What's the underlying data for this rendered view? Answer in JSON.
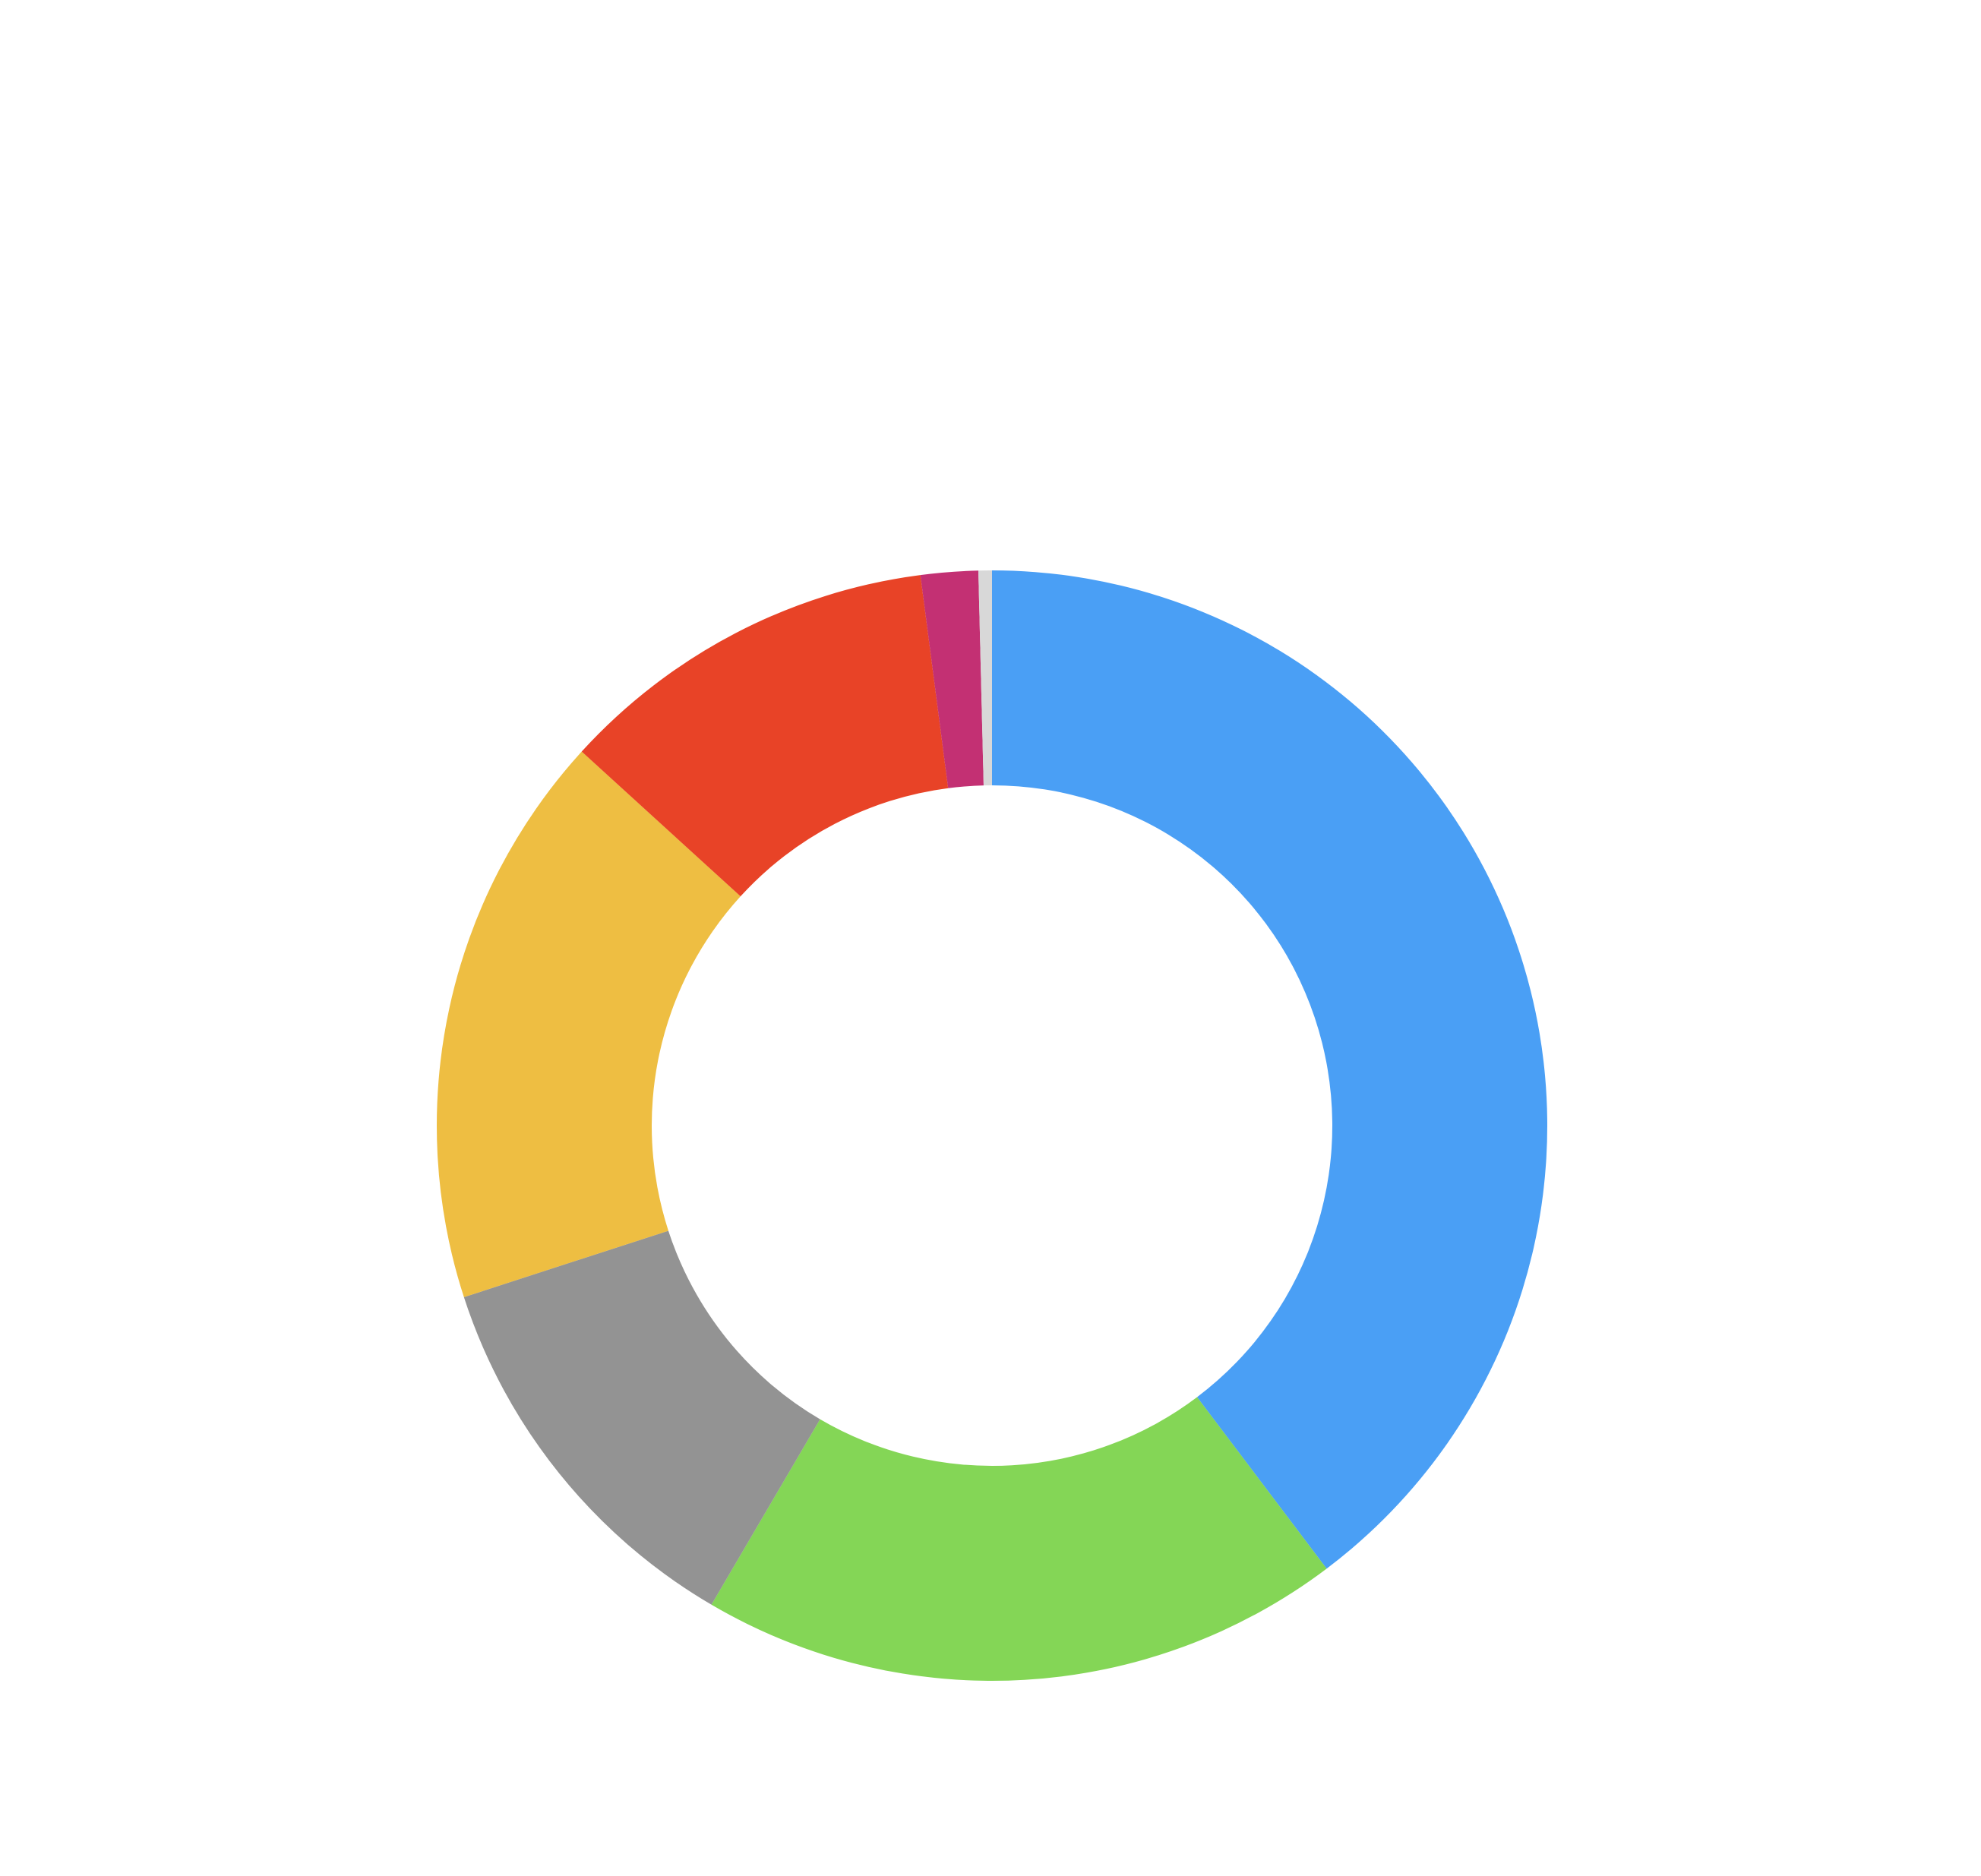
{
  "chart_data": {
    "type": "pie",
    "variant": "donut",
    "title": "",
    "legend": "none",
    "categories": [
      "",
      "",
      "",
      "",
      "",
      "",
      ""
    ],
    "values": [
      40.5,
      19.1,
      11.8,
      17.1,
      11.4,
      1.7,
      0.4
    ],
    "colors": [
      "#4A9FF5",
      "#84D656",
      "#939393",
      "#EEBE42",
      "#E84327",
      "#C33073",
      "#D8D8D8"
    ],
    "start_angle_deg": 0,
    "direction": "clockwise"
  }
}
